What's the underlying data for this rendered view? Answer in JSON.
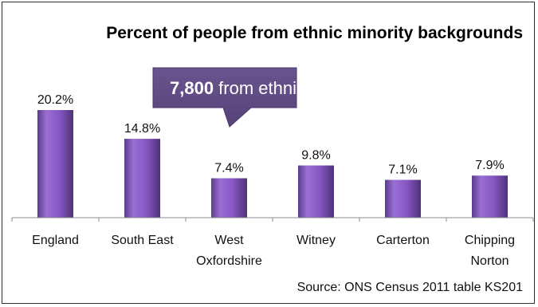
{
  "chart_data": {
    "type": "bar",
    "title": "Percent of people from ethnic minority backgrounds",
    "categories": [
      "England",
      "South East",
      "West Oxfordshire",
      "Witney",
      "Carterton",
      "Chipping Norton"
    ],
    "category_lines": [
      [
        "England"
      ],
      [
        "South East"
      ],
      [
        "West",
        "Oxfordshire"
      ],
      [
        "Witney"
      ],
      [
        "Carterton"
      ],
      [
        "Chipping",
        "Norton"
      ]
    ],
    "values": [
      20.2,
      14.8,
      7.4,
      9.8,
      7.1,
      7.9
    ],
    "value_labels": [
      "20.2%",
      "14.8%",
      "7.4%",
      "9.8%",
      "7.1%",
      "7.9%"
    ],
    "ylim": [
      0,
      20.2
    ],
    "grid": false,
    "bar_color": "#8a5ec2",
    "callout": {
      "emphasis": "7,800",
      "text": " from ethnic minorities",
      "color": "#5f4a85"
    },
    "source": "Source: ONS Census 2011 table KS201"
  }
}
